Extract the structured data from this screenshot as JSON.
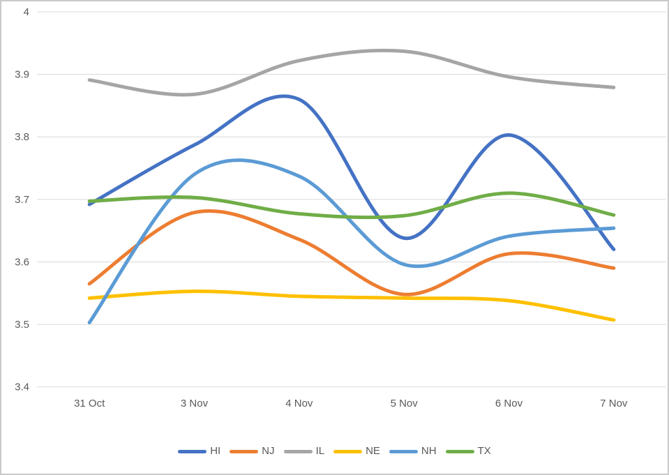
{
  "chart": {
    "background": "#FFFFFF",
    "frame_border_color": "#C9C9C9",
    "gridline_color": "#D9D9D9",
    "axis_text_color": "#595959"
  },
  "chart_data": {
    "type": "line",
    "smooth": true,
    "title": "",
    "xlabel": "",
    "ylabel": "",
    "grid": "horizontal",
    "legend_position": "bottom",
    "ylim": [
      3.4,
      4.0
    ],
    "y_ticks": [
      "4",
      "3.9",
      "3.8",
      "3.7",
      "3.6",
      "3.5",
      "3.4"
    ],
    "categories": [
      "31 Oct",
      "3 Nov",
      "4 Nov",
      "5 Nov",
      "6 Nov",
      "7 Nov"
    ],
    "series": [
      {
        "name": "HI",
        "color": "#4472C4",
        "values": [
          3.692,
          3.787,
          3.86,
          3.638,
          3.803,
          3.62
        ]
      },
      {
        "name": "NJ",
        "color": "#ED7D31",
        "values": [
          3.565,
          3.679,
          3.636,
          3.548,
          3.613,
          3.59
        ]
      },
      {
        "name": "IL",
        "color": "#A5A5A5",
        "values": [
          3.891,
          3.868,
          3.922,
          3.937,
          3.896,
          3.879
        ]
      },
      {
        "name": "NE",
        "color": "#FFC000",
        "values": [
          3.542,
          3.553,
          3.545,
          3.542,
          3.538,
          3.507
        ]
      },
      {
        "name": "NH",
        "color": "#5B9BD5",
        "values": [
          3.503,
          3.74,
          3.737,
          3.596,
          3.641,
          3.654
        ]
      },
      {
        "name": "TX",
        "color": "#70AD47",
        "values": [
          3.697,
          3.703,
          3.677,
          3.674,
          3.71,
          3.675
        ]
      }
    ]
  }
}
